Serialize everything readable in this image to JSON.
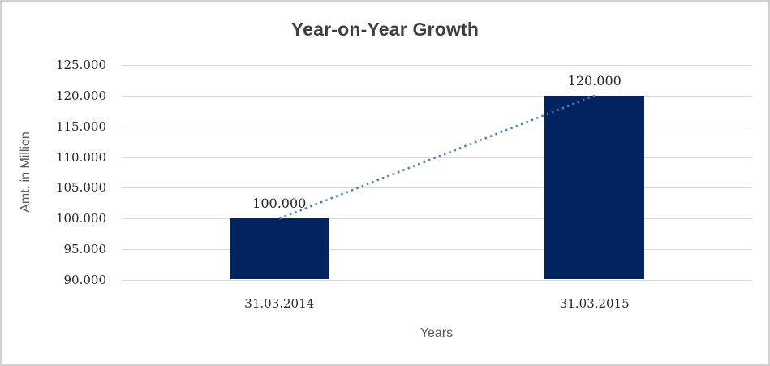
{
  "frame": {
    "background": "#ffffff",
    "border_color": "#d2d2d2"
  },
  "chart_data": {
    "type": "bar",
    "title": "Year-on-Year Growth",
    "xlabel": "Years",
    "ylabel": "Amt. in Million",
    "categories": [
      "31.03.2014",
      "31.03.2015"
    ],
    "values": [
      100000,
      120000
    ],
    "value_labels": [
      "100.000",
      "120.000"
    ],
    "ylim": [
      90000,
      125000
    ],
    "ytick_step": 5000,
    "yticks": [
      {
        "value": 125000,
        "label": "125.000"
      },
      {
        "value": 120000,
        "label": "120.000"
      },
      {
        "value": 115000,
        "label": "115.000"
      },
      {
        "value": 110000,
        "label": "110.000"
      },
      {
        "value": 105000,
        "label": "105.000"
      },
      {
        "value": 100000,
        "label": "100.000"
      },
      {
        "value": 95000,
        "label": "95.000"
      },
      {
        "value": 90000,
        "label": "90.000"
      }
    ],
    "grid": "horizontal",
    "legend": "none",
    "bar_color": "#02235e",
    "gridline_color": "#d9d9d9",
    "trendline": {
      "style": "dotted",
      "color": "#4a7ebb",
      "connects": "bar tops (100.000 → 120.000)"
    }
  }
}
